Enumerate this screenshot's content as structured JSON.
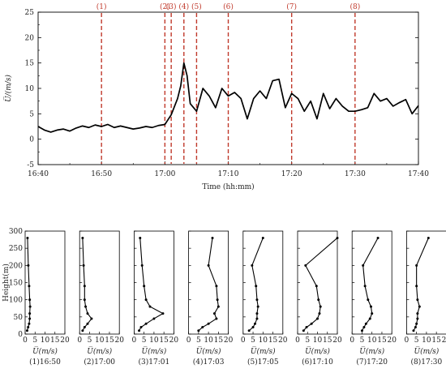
{
  "chart_data": [
    {
      "type": "line",
      "xlabel": "Time (hh:mm)",
      "ylabel": "U̅/(m/s)",
      "xlim": [
        "16:40",
        "17:40"
      ],
      "xticks": [
        "16:40",
        "16:50",
        "17:00",
        "17:10",
        "17:20",
        "17:30",
        "17:40"
      ],
      "ylim": [
        -5,
        25
      ],
      "yticks": [
        "-5",
        "0",
        "5",
        "10",
        "15",
        "20",
        "25"
      ],
      "x": [
        "16:40",
        "16:41",
        "16:42",
        "16:43",
        "16:44",
        "16:45",
        "16:46",
        "16:47",
        "16:48",
        "16:49",
        "16:50",
        "16:51",
        "16:52",
        "16:53",
        "16:54",
        "16:55",
        "16:56",
        "16:57",
        "16:58",
        "16:59",
        "17:00",
        "17:01",
        "17:02",
        "17:02.5",
        "17:03",
        "17:03.5",
        "17:04",
        "17:05",
        "17:06",
        "17:07",
        "17:08",
        "17:09",
        "17:10",
        "17:11",
        "17:12",
        "17:13",
        "17:14",
        "17:15",
        "17:16",
        "17:17",
        "17:18",
        "17:19",
        "17:20",
        "17:21",
        "17:22",
        "17:23",
        "17:24",
        "17:25",
        "17:26",
        "17:27",
        "17:28",
        "17:29",
        "17:30",
        "17:31",
        "17:32",
        "17:33",
        "17:34",
        "17:35",
        "17:36",
        "17:37",
        "17:38",
        "17:39",
        "17:40"
      ],
      "y": [
        2.5,
        1.8,
        1.4,
        1.8,
        2.0,
        1.6,
        2.2,
        2.6,
        2.3,
        2.8,
        2.5,
        2.9,
        2.3,
        2.6,
        2.3,
        2.0,
        2.2,
        2.5,
        2.3,
        2.7,
        2.9,
        4.8,
        8.0,
        10.5,
        15.0,
        12.5,
        7.0,
        5.5,
        10.0,
        8.5,
        6.2,
        10.0,
        8.5,
        9.2,
        8.0,
        4.0,
        8.0,
        9.5,
        8.0,
        11.5,
        11.8,
        6.2,
        9.0,
        8.0,
        5.5,
        7.5,
        4.0,
        9.0,
        6.0,
        8.0,
        6.5,
        5.5,
        5.5,
        5.8,
        6.2,
        9.0,
        7.5,
        8.0,
        6.5,
        7.2,
        7.8,
        5.0,
        6.6
      ],
      "events": [
        {
          "label": "(1)",
          "time": "16:50"
        },
        {
          "label": "(2)",
          "time": "17:00"
        },
        {
          "label": "(3)",
          "time": "17:01"
        },
        {
          "label": "(4)",
          "time": "17:03"
        },
        {
          "label": "(5)",
          "time": "17:05"
        },
        {
          "label": "(6)",
          "time": "17:10"
        },
        {
          "label": "(7)",
          "time": "17:20"
        },
        {
          "label": "(8)",
          "time": "17:30"
        }
      ],
      "colors": {
        "line": "#000000",
        "event": "#c0392b"
      }
    },
    {
      "type": "line",
      "ylabel": "Height(m)",
      "xlabel": "U̅(m/s)",
      "xlim": [
        0,
        20
      ],
      "xticks": [
        "0",
        "5",
        "10",
        "15",
        "20"
      ],
      "ylim": [
        0,
        300
      ],
      "yticks": [
        "0",
        "50",
        "100",
        "150",
        "200",
        "250",
        "300"
      ],
      "heights": [
        10,
        20,
        30,
        45,
        60,
        80,
        100,
        140,
        200,
        280
      ],
      "panels": [
        {
          "caption": "(1)16:50",
          "u": [
            1.0,
            1.5,
            2.0,
            2.3,
            2.3,
            2.5,
            2.3,
            2.0,
            1.6,
            1.2
          ]
        },
        {
          "caption": "(2)17:00",
          "u": [
            1.5,
            2.5,
            4.0,
            6.0,
            4.0,
            3.0,
            2.5,
            2.5,
            2.0,
            1.5
          ]
        },
        {
          "caption": "(3)17:01",
          "u": [
            2.5,
            3.5,
            6.0,
            10.0,
            14.5,
            8.0,
            6.0,
            5.0,
            4.0,
            3.0
          ]
        },
        {
          "caption": "(4)17:03",
          "u": [
            5.0,
            7.0,
            10.0,
            14.0,
            13.0,
            15.0,
            14.5,
            14.0,
            10.0,
            12.0
          ]
        },
        {
          "caption": "(5)17:05",
          "u": [
            3.0,
            5.0,
            6.0,
            7.0,
            7.0,
            7.5,
            7.0,
            6.5,
            4.5,
            10.0
          ]
        },
        {
          "caption": "(6)17:10",
          "u": [
            3.0,
            4.5,
            7.0,
            10.0,
            11.0,
            11.5,
            10.5,
            9.5,
            4.0,
            20.0
          ]
        },
        {
          "caption": "(7)17:20",
          "u": [
            5.0,
            6.0,
            7.0,
            9.0,
            10.0,
            9.5,
            8.0,
            6.5,
            5.5,
            13.0
          ]
        },
        {
          "caption": "(8)17:30",
          "u": [
            3.5,
            4.5,
            5.0,
            5.5,
            5.5,
            6.5,
            5.5,
            5.0,
            5.0,
            11.0
          ]
        }
      ]
    }
  ]
}
